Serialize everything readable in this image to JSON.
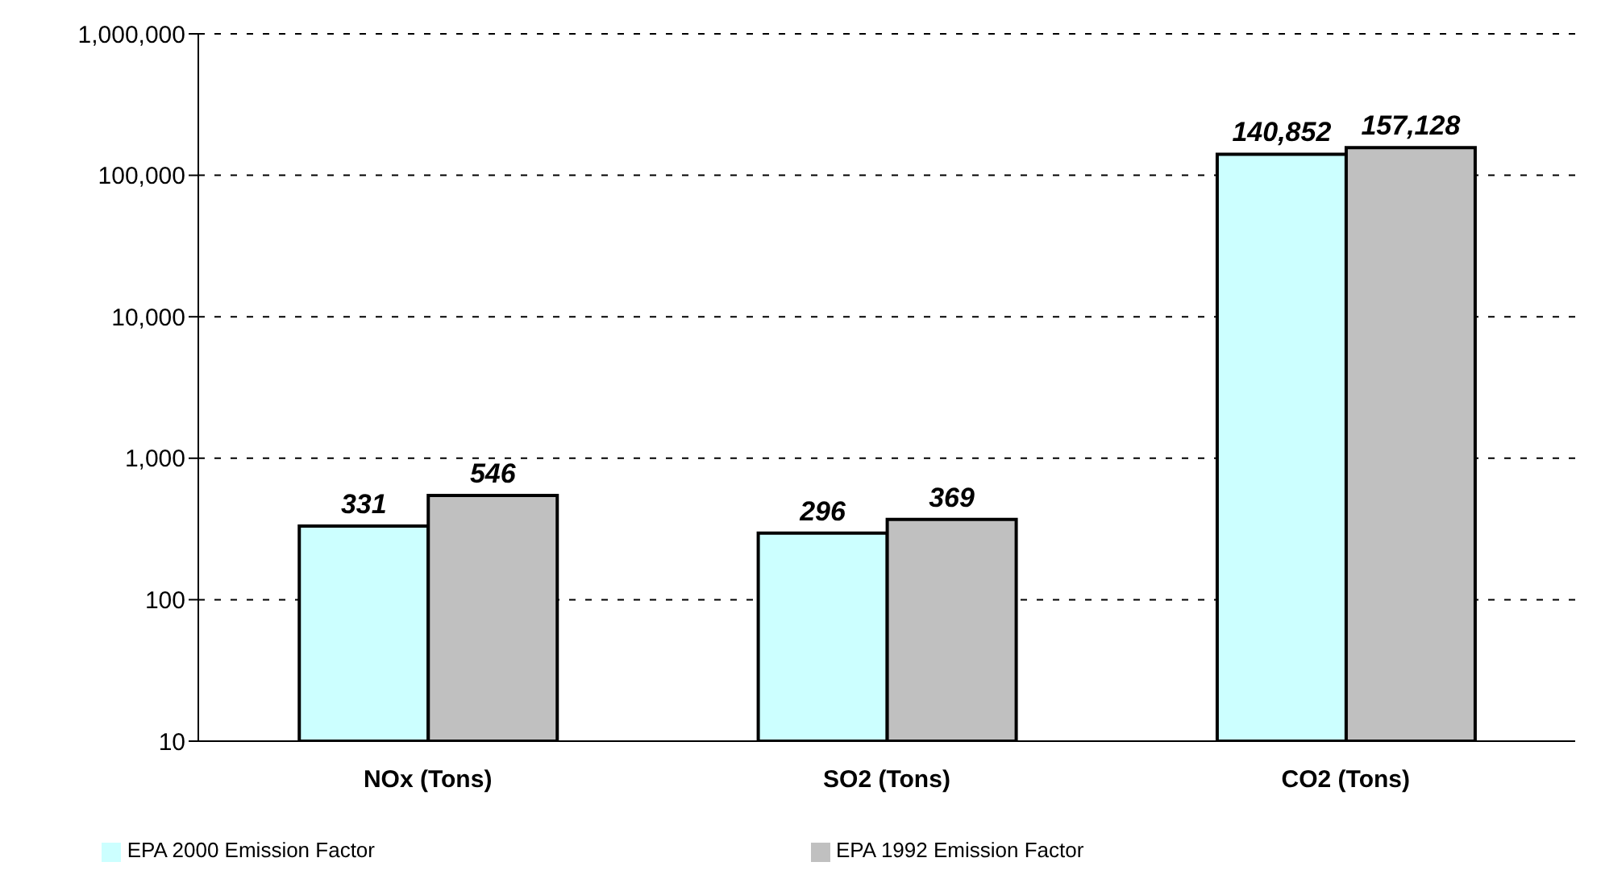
{
  "chart_data": {
    "type": "bar",
    "categories": [
      "NOx (Tons)",
      "SO2 (Tons)",
      "CO2 (Tons)"
    ],
    "series": [
      {
        "name": "EPA 2000 Emission Factor",
        "color": "#ccffff",
        "values": [
          331,
          296,
          140852
        ],
        "value_labels": [
          "331",
          "296",
          "140,852"
        ]
      },
      {
        "name": "EPA 1992 Emission Factor",
        "color": "#c0c0c0",
        "values": [
          546,
          369,
          157128
        ],
        "value_labels": [
          "546",
          "369",
          "157,128"
        ]
      }
    ],
    "log": "y",
    "ylim": [
      10,
      1000000
    ],
    "yticks": [
      10,
      100,
      {
        "value": 1000,
        "label": "1,000"
      },
      {
        "value": 10000,
        "label": "10,000"
      },
      {
        "value": 100000,
        "label": "100,000"
      },
      {
        "value": 1000000,
        "label": "1,000,000"
      }
    ],
    "grid": "y",
    "legend": "bottom"
  }
}
